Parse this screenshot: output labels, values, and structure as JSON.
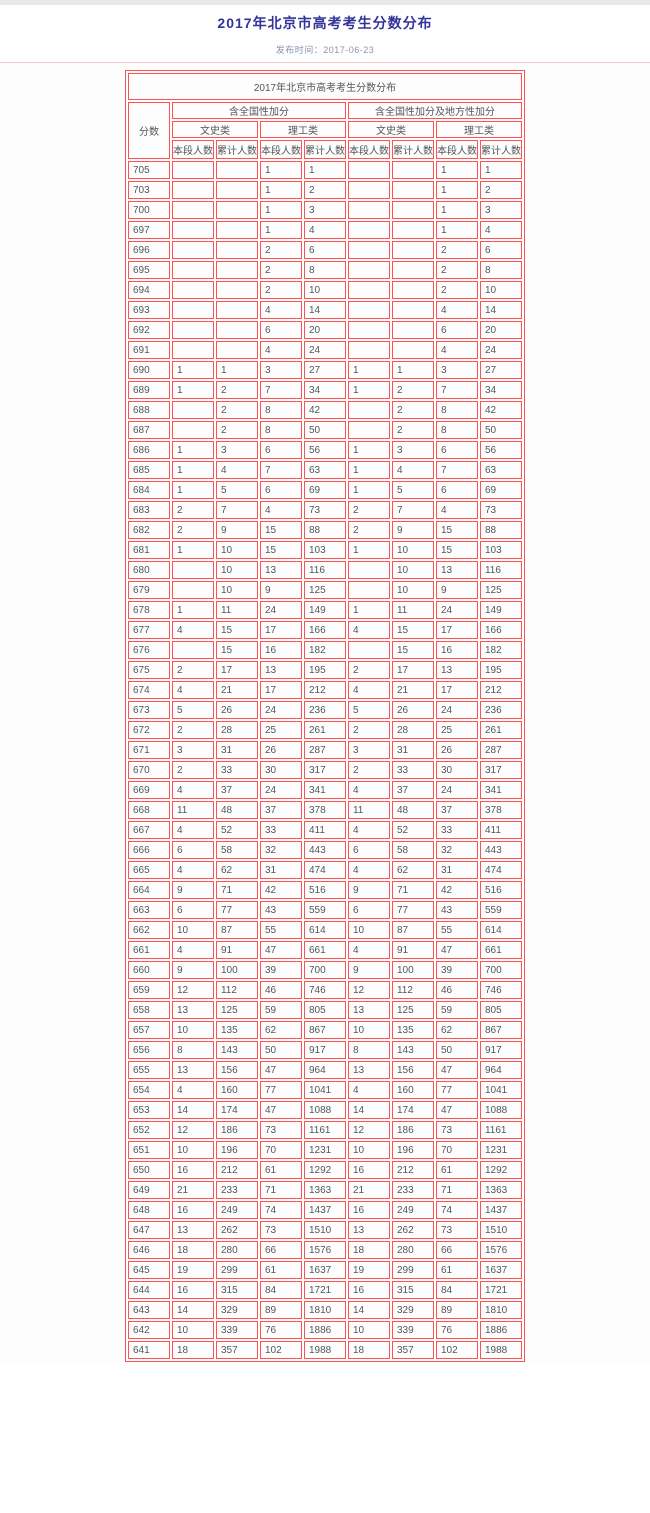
{
  "page": {
    "title": "2017年北京市高考考生分数分布",
    "publish_line": "发布时间：2017-06-23"
  },
  "colors": {
    "title_blue": "#333399",
    "table_border_red": "#ff5252",
    "cell_text_gray": "#555555",
    "divider_pink": "#f2c9c9"
  },
  "table": {
    "caption": "2017年北京市高考考生分数分布",
    "score_header": "分数",
    "groups": [
      {
        "label": "含全国性加分"
      },
      {
        "label": "含全国性加分及地方性加分"
      }
    ],
    "subgroups": [
      "文史类",
      "理工类",
      "文史类",
      "理工类"
    ],
    "leaf_headers": [
      "本段人数",
      "累计人数",
      "本段人数",
      "累计人数",
      "本段人数",
      "累计人数",
      "本段人数",
      "累计人数"
    ],
    "rows": [
      {
        "score": "705",
        "values": [
          "",
          "",
          "1",
          "1",
          "",
          "",
          "1",
          "1"
        ]
      },
      {
        "score": "703",
        "values": [
          "",
          "",
          "1",
          "2",
          "",
          "",
          "1",
          "2"
        ]
      },
      {
        "score": "700",
        "values": [
          "",
          "",
          "1",
          "3",
          "",
          "",
          "1",
          "3"
        ]
      },
      {
        "score": "697",
        "values": [
          "",
          "",
          "1",
          "4",
          "",
          "",
          "1",
          "4"
        ]
      },
      {
        "score": "696",
        "values": [
          "",
          "",
          "2",
          "6",
          "",
          "",
          "2",
          "6"
        ]
      },
      {
        "score": "695",
        "values": [
          "",
          "",
          "2",
          "8",
          "",
          "",
          "2",
          "8"
        ]
      },
      {
        "score": "694",
        "values": [
          "",
          "",
          "2",
          "10",
          "",
          "",
          "2",
          "10"
        ]
      },
      {
        "score": "693",
        "values": [
          "",
          "",
          "4",
          "14",
          "",
          "",
          "4",
          "14"
        ]
      },
      {
        "score": "692",
        "values": [
          "",
          "",
          "6",
          "20",
          "",
          "",
          "6",
          "20"
        ]
      },
      {
        "score": "691",
        "values": [
          "",
          "",
          "4",
          "24",
          "",
          "",
          "4",
          "24"
        ]
      },
      {
        "score": "690",
        "values": [
          "1",
          "1",
          "3",
          "27",
          "1",
          "1",
          "3",
          "27"
        ]
      },
      {
        "score": "689",
        "values": [
          "1",
          "2",
          "7",
          "34",
          "1",
          "2",
          "7",
          "34"
        ]
      },
      {
        "score": "688",
        "values": [
          "",
          "2",
          "8",
          "42",
          "",
          "2",
          "8",
          "42"
        ]
      },
      {
        "score": "687",
        "values": [
          "",
          "2",
          "8",
          "50",
          "",
          "2",
          "8",
          "50"
        ]
      },
      {
        "score": "686",
        "values": [
          "1",
          "3",
          "6",
          "56",
          "1",
          "3",
          "6",
          "56"
        ]
      },
      {
        "score": "685",
        "values": [
          "1",
          "4",
          "7",
          "63",
          "1",
          "4",
          "7",
          "63"
        ]
      },
      {
        "score": "684",
        "values": [
          "1",
          "5",
          "6",
          "69",
          "1",
          "5",
          "6",
          "69"
        ]
      },
      {
        "score": "683",
        "values": [
          "2",
          "7",
          "4",
          "73",
          "2",
          "7",
          "4",
          "73"
        ]
      },
      {
        "score": "682",
        "values": [
          "2",
          "9",
          "15",
          "88",
          "2",
          "9",
          "15",
          "88"
        ]
      },
      {
        "score": "681",
        "values": [
          "1",
          "10",
          "15",
          "103",
          "1",
          "10",
          "15",
          "103"
        ]
      },
      {
        "score": "680",
        "values": [
          "",
          "10",
          "13",
          "116",
          "",
          "10",
          "13",
          "116"
        ]
      },
      {
        "score": "679",
        "values": [
          "",
          "10",
          "9",
          "125",
          "",
          "10",
          "9",
          "125"
        ]
      },
      {
        "score": "678",
        "values": [
          "1",
          "11",
          "24",
          "149",
          "1",
          "11",
          "24",
          "149"
        ]
      },
      {
        "score": "677",
        "values": [
          "4",
          "15",
          "17",
          "166",
          "4",
          "15",
          "17",
          "166"
        ]
      },
      {
        "score": "676",
        "values": [
          "",
          "15",
          "16",
          "182",
          "",
          "15",
          "16",
          "182"
        ]
      },
      {
        "score": "675",
        "values": [
          "2",
          "17",
          "13",
          "195",
          "2",
          "17",
          "13",
          "195"
        ]
      },
      {
        "score": "674",
        "values": [
          "4",
          "21",
          "17",
          "212",
          "4",
          "21",
          "17",
          "212"
        ]
      },
      {
        "score": "673",
        "values": [
          "5",
          "26",
          "24",
          "236",
          "5",
          "26",
          "24",
          "236"
        ]
      },
      {
        "score": "672",
        "values": [
          "2",
          "28",
          "25",
          "261",
          "2",
          "28",
          "25",
          "261"
        ]
      },
      {
        "score": "671",
        "values": [
          "3",
          "31",
          "26",
          "287",
          "3",
          "31",
          "26",
          "287"
        ]
      },
      {
        "score": "670",
        "values": [
          "2",
          "33",
          "30",
          "317",
          "2",
          "33",
          "30",
          "317"
        ]
      },
      {
        "score": "669",
        "values": [
          "4",
          "37",
          "24",
          "341",
          "4",
          "37",
          "24",
          "341"
        ]
      },
      {
        "score": "668",
        "values": [
          "11",
          "48",
          "37",
          "378",
          "11",
          "48",
          "37",
          "378"
        ]
      },
      {
        "score": "667",
        "values": [
          "4",
          "52",
          "33",
          "411",
          "4",
          "52",
          "33",
          "411"
        ]
      },
      {
        "score": "666",
        "values": [
          "6",
          "58",
          "32",
          "443",
          "6",
          "58",
          "32",
          "443"
        ]
      },
      {
        "score": "665",
        "values": [
          "4",
          "62",
          "31",
          "474",
          "4",
          "62",
          "31",
          "474"
        ]
      },
      {
        "score": "664",
        "values": [
          "9",
          "71",
          "42",
          "516",
          "9",
          "71",
          "42",
          "516"
        ]
      },
      {
        "score": "663",
        "values": [
          "6",
          "77",
          "43",
          "559",
          "6",
          "77",
          "43",
          "559"
        ]
      },
      {
        "score": "662",
        "values": [
          "10",
          "87",
          "55",
          "614",
          "10",
          "87",
          "55",
          "614"
        ]
      },
      {
        "score": "661",
        "values": [
          "4",
          "91",
          "47",
          "661",
          "4",
          "91",
          "47",
          "661"
        ]
      },
      {
        "score": "660",
        "values": [
          "9",
          "100",
          "39",
          "700",
          "9",
          "100",
          "39",
          "700"
        ]
      },
      {
        "score": "659",
        "values": [
          "12",
          "112",
          "46",
          "746",
          "12",
          "112",
          "46",
          "746"
        ]
      },
      {
        "score": "658",
        "values": [
          "13",
          "125",
          "59",
          "805",
          "13",
          "125",
          "59",
          "805"
        ]
      },
      {
        "score": "657",
        "values": [
          "10",
          "135",
          "62",
          "867",
          "10",
          "135",
          "62",
          "867"
        ]
      },
      {
        "score": "656",
        "values": [
          "8",
          "143",
          "50",
          "917",
          "8",
          "143",
          "50",
          "917"
        ]
      },
      {
        "score": "655",
        "values": [
          "13",
          "156",
          "47",
          "964",
          "13",
          "156",
          "47",
          "964"
        ]
      },
      {
        "score": "654",
        "values": [
          "4",
          "160",
          "77",
          "1041",
          "4",
          "160",
          "77",
          "1041"
        ]
      },
      {
        "score": "653",
        "values": [
          "14",
          "174",
          "47",
          "1088",
          "14",
          "174",
          "47",
          "1088"
        ]
      },
      {
        "score": "652",
        "values": [
          "12",
          "186",
          "73",
          "1161",
          "12",
          "186",
          "73",
          "1161"
        ]
      },
      {
        "score": "651",
        "values": [
          "10",
          "196",
          "70",
          "1231",
          "10",
          "196",
          "70",
          "1231"
        ]
      },
      {
        "score": "650",
        "values": [
          "16",
          "212",
          "61",
          "1292",
          "16",
          "212",
          "61",
          "1292"
        ]
      },
      {
        "score": "649",
        "values": [
          "21",
          "233",
          "71",
          "1363",
          "21",
          "233",
          "71",
          "1363"
        ]
      },
      {
        "score": "648",
        "values": [
          "16",
          "249",
          "74",
          "1437",
          "16",
          "249",
          "74",
          "1437"
        ]
      },
      {
        "score": "647",
        "values": [
          "13",
          "262",
          "73",
          "1510",
          "13",
          "262",
          "73",
          "1510"
        ]
      },
      {
        "score": "646",
        "values": [
          "18",
          "280",
          "66",
          "1576",
          "18",
          "280",
          "66",
          "1576"
        ]
      },
      {
        "score": "645",
        "values": [
          "19",
          "299",
          "61",
          "1637",
          "19",
          "299",
          "61",
          "1637"
        ]
      },
      {
        "score": "644",
        "values": [
          "16",
          "315",
          "84",
          "1721",
          "16",
          "315",
          "84",
          "1721"
        ]
      },
      {
        "score": "643",
        "values": [
          "14",
          "329",
          "89",
          "1810",
          "14",
          "329",
          "89",
          "1810"
        ]
      },
      {
        "score": "642",
        "values": [
          "10",
          "339",
          "76",
          "1886",
          "10",
          "339",
          "76",
          "1886"
        ]
      },
      {
        "score": "641",
        "values": [
          "18",
          "357",
          "102",
          "1988",
          "18",
          "357",
          "102",
          "1988"
        ]
      }
    ]
  }
}
